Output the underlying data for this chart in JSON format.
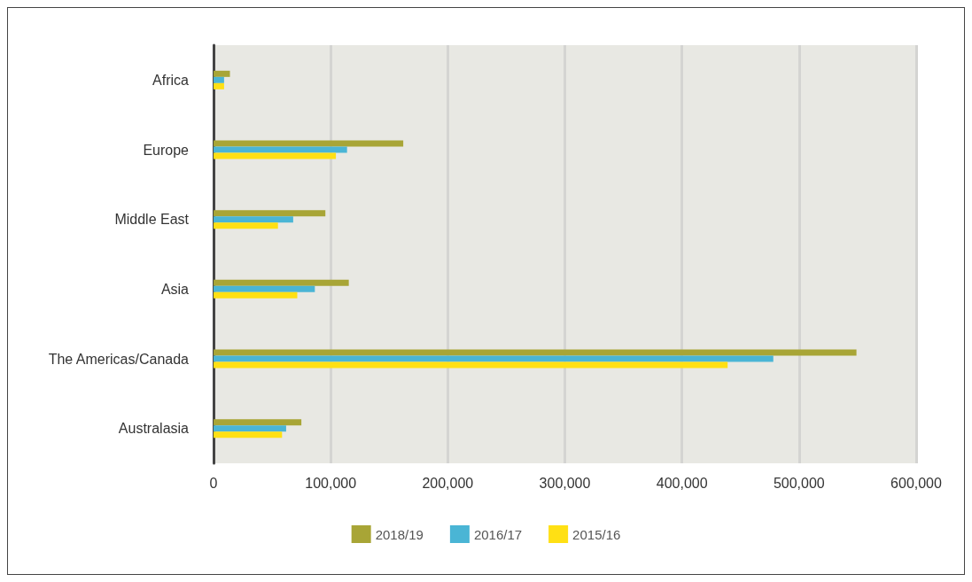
{
  "chart_data": {
    "type": "bar",
    "orientation": "horizontal",
    "categories": [
      "Africa",
      "Europe",
      "Middle East",
      "Asia",
      "The Americas/Canada",
      "Australasia"
    ],
    "series": [
      {
        "name": "2018/19",
        "color": "#a8a536",
        "values": [
          14000,
          162000,
          95500,
          115500,
          549000,
          75000
        ]
      },
      {
        "name": "2016/17",
        "color": "#4ab5d5",
        "values": [
          9000,
          114000,
          68000,
          86500,
          478000,
          62000
        ]
      },
      {
        "name": "2015/16",
        "color": "#ffe014",
        "values": [
          9000,
          104500,
          55000,
          71500,
          439000,
          58500
        ]
      }
    ],
    "xlim": [
      0,
      600000
    ],
    "xticks": [
      0,
      {
        "value": 100000,
        "label": "100,000"
      },
      {
        "value": 200000,
        "label": "200,000"
      },
      {
        "value": 300000,
        "label": "300,000"
      },
      {
        "value": 400000,
        "label": "400,000"
      },
      {
        "value": 500000,
        "label": "500,000"
      },
      {
        "value": 600000,
        "label": "600,000"
      }
    ],
    "grid": "x",
    "legend": "bottom"
  }
}
